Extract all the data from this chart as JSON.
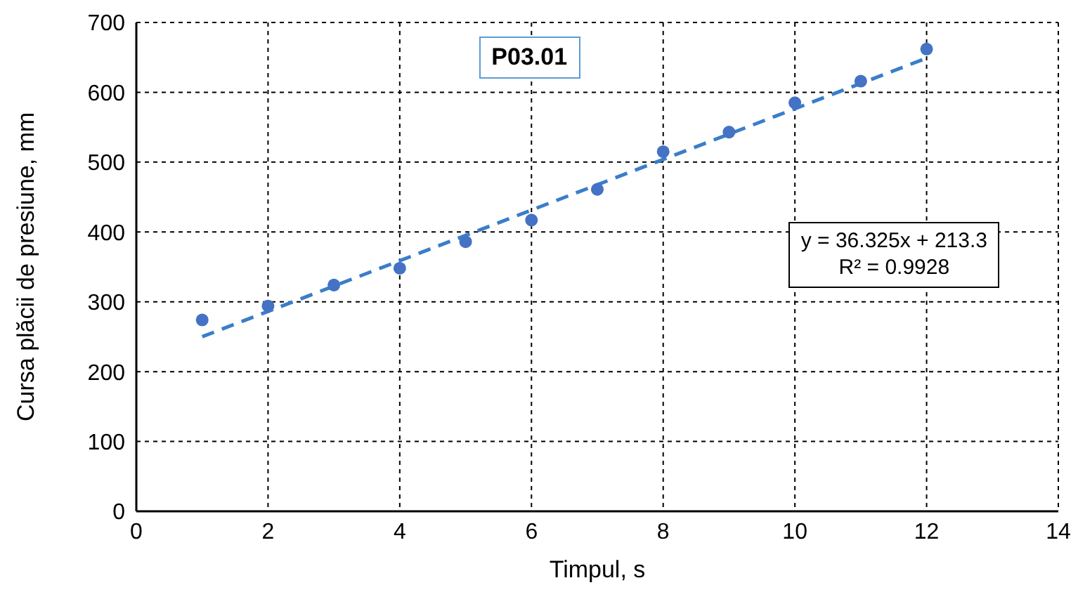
{
  "chart_data": {
    "type": "scatter",
    "xlabel": "Timpul, s",
    "ylabel": "Cursa plăcii de presiune, mm",
    "x": [
      1,
      2,
      3,
      4,
      5,
      6,
      7,
      8,
      9,
      10,
      11,
      12
    ],
    "series": [
      {
        "color": "#4472c4",
        "values": [
          274,
          294,
          324,
          348,
          386,
          417,
          461,
          515,
          543,
          585,
          616,
          662
        ],
        "marker": "circle"
      },
      {
        "type": "line",
        "color": "#3a7ec8",
        "x": [
          1,
          12
        ],
        "values": [
          250,
          649
        ],
        "line_style": "dashed",
        "marker": "none"
      }
    ],
    "xlim": [
      0,
      14
    ],
    "xticks": [
      0,
      2,
      4,
      6,
      8,
      10,
      12,
      14
    ],
    "ylim": [
      0,
      700
    ],
    "yticks": [
      0,
      100,
      200,
      300,
      400,
      500,
      600,
      700
    ],
    "grid": true,
    "legend": false,
    "annotations": [
      "P03.01",
      "y = 36.325x + 213.3\nR² = 0.9928"
    ]
  }
}
